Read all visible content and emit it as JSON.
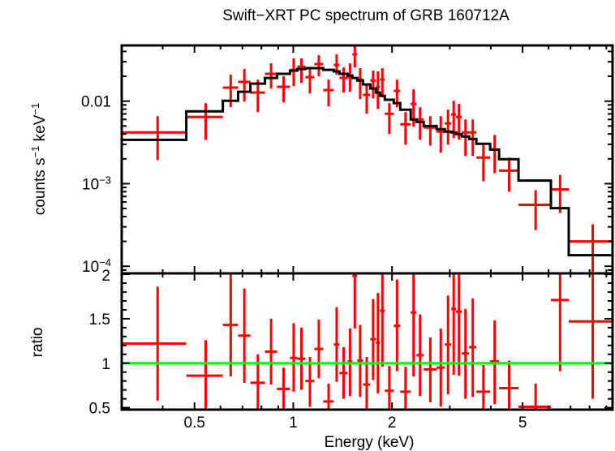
{
  "chart_data": {
    "type": "scatter",
    "title": "Swift−XRT PC spectrum of GRB 160712A",
    "xlabel": "Energy (keV)",
    "xscale": "log",
    "xlim": [
      0.3,
      9.4
    ],
    "xticks": [
      {
        "value": 0.5,
        "label": "0.5"
      },
      {
        "value": 1,
        "label": "1"
      },
      {
        "value": 2,
        "label": "2"
      },
      {
        "value": 5,
        "label": "5"
      }
    ],
    "x_minor_ticks": [
      0.4,
      0.6,
      0.7,
      0.8,
      0.9,
      3,
      4,
      6,
      7,
      8,
      9
    ],
    "bins": {
      "e_lo": [
        0.3,
        0.472,
        0.61,
        0.679,
        0.74,
        0.82,
        0.892,
        0.977,
        1.029,
        1.089,
        1.159,
        1.234,
        1.329,
        1.383,
        1.464,
        1.514,
        1.567,
        1.631,
        1.717,
        1.786,
        1.837,
        1.901,
        2.024,
        2.118,
        2.28,
        2.373,
        2.497,
        2.735,
        2.896,
        3.03,
        3.135,
        3.263,
        3.435,
        3.614,
        3.981,
        4.239,
        4.858,
        6.099,
        6.911
      ],
      "e_hi": [
        0.472,
        0.61,
        0.679,
        0.74,
        0.82,
        0.892,
        0.977,
        1.029,
        1.089,
        1.159,
        1.234,
        1.329,
        1.383,
        1.464,
        1.514,
        1.567,
        1.631,
        1.717,
        1.786,
        1.837,
        1.901,
        2.024,
        2.118,
        2.28,
        2.373,
        2.497,
        2.735,
        2.896,
        3.03,
        3.135,
        3.263,
        3.435,
        3.614,
        3.981,
        4.239,
        4.858,
        6.099,
        6.911,
        9.447
      ]
    },
    "panels": [
      {
        "name": "spectrum",
        "ylabel": "counts s⁻¹ keV⁻¹",
        "ylabel_parts": [
          {
            "text": "counts s",
            "sup": false
          },
          {
            "text": "−1",
            "sup": true
          },
          {
            "text": " keV",
            "sup": false
          },
          {
            "text": "−1",
            "sup": true
          }
        ],
        "yscale": "log",
        "ylim": [
          8.2e-05,
          0.0473
        ],
        "yticks": [
          {
            "value": 0.01,
            "base": "0.01",
            "exp": ""
          },
          {
            "value": 0.001,
            "base": "10",
            "exp": "−3"
          },
          {
            "value": 0.0001,
            "base": "10",
            "exp": "−4"
          }
        ],
        "data": {
          "name": "data",
          "color": "#ff0000",
          "y": [
            0.00418,
            0.00643,
            0.0146,
            0.0171,
            0.0127,
            0.0214,
            0.0149,
            0.0239,
            0.0262,
            0.0195,
            0.0281,
            0.0136,
            0.0274,
            0.0191,
            0.0195,
            0.0369,
            0.0182,
            0.0119,
            0.0178,
            0.0149,
            0.0182,
            0.00703,
            0.0133,
            0.00524,
            0.00925,
            0.006,
            0.00479,
            0.00427,
            0.00536,
            0.00688,
            0.00643,
            0.00418,
            0.00418,
            0.00207,
            0.00259,
            0.00144,
            0.000555,
            0.000853,
            0.0002
          ],
          "y_lo": [
            0.00193,
            0.0034,
            0.00844,
            0.00989,
            0.00736,
            0.0142,
            0.00966,
            0.0152,
            0.0167,
            0.0124,
            0.02,
            0.00863,
            0.0209,
            0.0127,
            0.013,
            0.0256,
            0.0106,
            0.00703,
            0.0108,
            0.00805,
            0.0111,
            0.00399,
            0.00844,
            0.00297,
            0.0049,
            0.0034,
            0.0029,
            0.00237,
            0.00297,
            0.00356,
            0.0034,
            0.00216,
            0.00216,
            0.00107,
            0.00134,
            0.000797,
            0.000274,
            0.000442,
            7.53e-05
          ],
          "y_hi": [
            0.00657,
            0.00945,
            0.0209,
            0.0245,
            0.0182,
            0.0287,
            0.02,
            0.0329,
            0.0329,
            0.0256,
            0.036,
            0.0182,
            0.0369,
            0.0256,
            0.0287,
            0.0484,
            0.0251,
            0.0163,
            0.0234,
            0.0229,
            0.0251,
            0.00945,
            0.0182,
            0.00736,
            0.0139,
            0.00844,
            0.00657,
            0.00657,
            0.00788,
            0.0101,
            0.00925,
            0.006,
            0.006,
            0.00297,
            0.0039,
            0.00207,
            0.000834,
            0.00128,
            0.000322
          ]
        },
        "model": {
          "name": "model",
          "color": "#000000",
          "type": "step",
          "y": [
            0.0034,
            0.00753,
            0.0101,
            0.013,
            0.0163,
            0.0191,
            0.0214,
            0.0234,
            0.0245,
            0.0251,
            0.0251,
            0.0239,
            0.0229,
            0.0214,
            0.0204,
            0.0191,
            0.0178,
            0.0159,
            0.0142,
            0.0127,
            0.0116,
            0.0104,
            0.00945,
            0.00788,
            0.006,
            0.00561,
            0.005,
            0.00457,
            0.00427,
            0.00418,
            0.00399,
            0.00373,
            0.00348,
            0.00304,
            0.00259,
            0.00198,
            0.00109,
            0.000506,
            0.000136
          ]
        }
      },
      {
        "name": "ratio",
        "ylabel": "ratio",
        "yscale": "linear",
        "ylim": [
          0.478,
          2.01
        ],
        "yticks": [
          {
            "value": 2,
            "label": "2"
          },
          {
            "value": 1.5,
            "label": "1.5"
          },
          {
            "value": 1,
            "label": "1"
          },
          {
            "value": 0.5,
            "label": "0.5"
          }
        ],
        "minor_step": 0.1,
        "reference_line": {
          "value": 1,
          "color": "#00ff00"
        },
        "data": {
          "name": "data/model",
          "color": "#ff0000",
          "y": [
            1.22,
            0.86,
            1.43,
            1.31,
            0.78,
            1.13,
            0.71,
            1.06,
            1.05,
            0.8,
            1.16,
            0.57,
            1.21,
            0.89,
            1.02,
            1.98,
            1.03,
            0.76,
            1.27,
            1.23,
            1.59,
            0.69,
            1.42,
            0.68,
            1.57,
            1.09,
            0.93,
            0.95,
            1.21,
            1.61,
            1.58,
            1.11,
            1.18,
            0.68,
            1.02,
            0.72,
            0.51,
            1.71,
            1.47
          ],
          "y_lo": [
            0.58,
            0.46,
            0.85,
            0.78,
            0.46,
            0.76,
            0.47,
            0.68,
            0.7,
            0.51,
            0.83,
            0.37,
            0.79,
            0.6,
            0.63,
            1.39,
            0.62,
            0.45,
            0.81,
            0.66,
            0.96,
            0.41,
            0.91,
            0.4,
            0.85,
            0.63,
            0.56,
            0.51,
            0.65,
            0.87,
            0.86,
            0.6,
            0.62,
            0.38,
            0.54,
            0.41,
            0.25,
            0.91,
            0.6
          ],
          "y_hi": [
            1.86,
            1.26,
            2.01,
            1.84,
            1.1,
            1.5,
            0.95,
            1.45,
            1.4,
            1.07,
            1.49,
            0.77,
            1.63,
            1.18,
            1.39,
            2.57,
            1.43,
            1.07,
            1.72,
            1.79,
            2.22,
            0.97,
            1.94,
            0.96,
            2.29,
            1.55,
            1.29,
            1.39,
            1.76,
            2.35,
            2.3,
            1.61,
            1.73,
            0.98,
            1.48,
            1.03,
            0.77,
            2.51,
            2.34
          ]
        }
      }
    ],
    "grid": false,
    "legend": "none"
  }
}
